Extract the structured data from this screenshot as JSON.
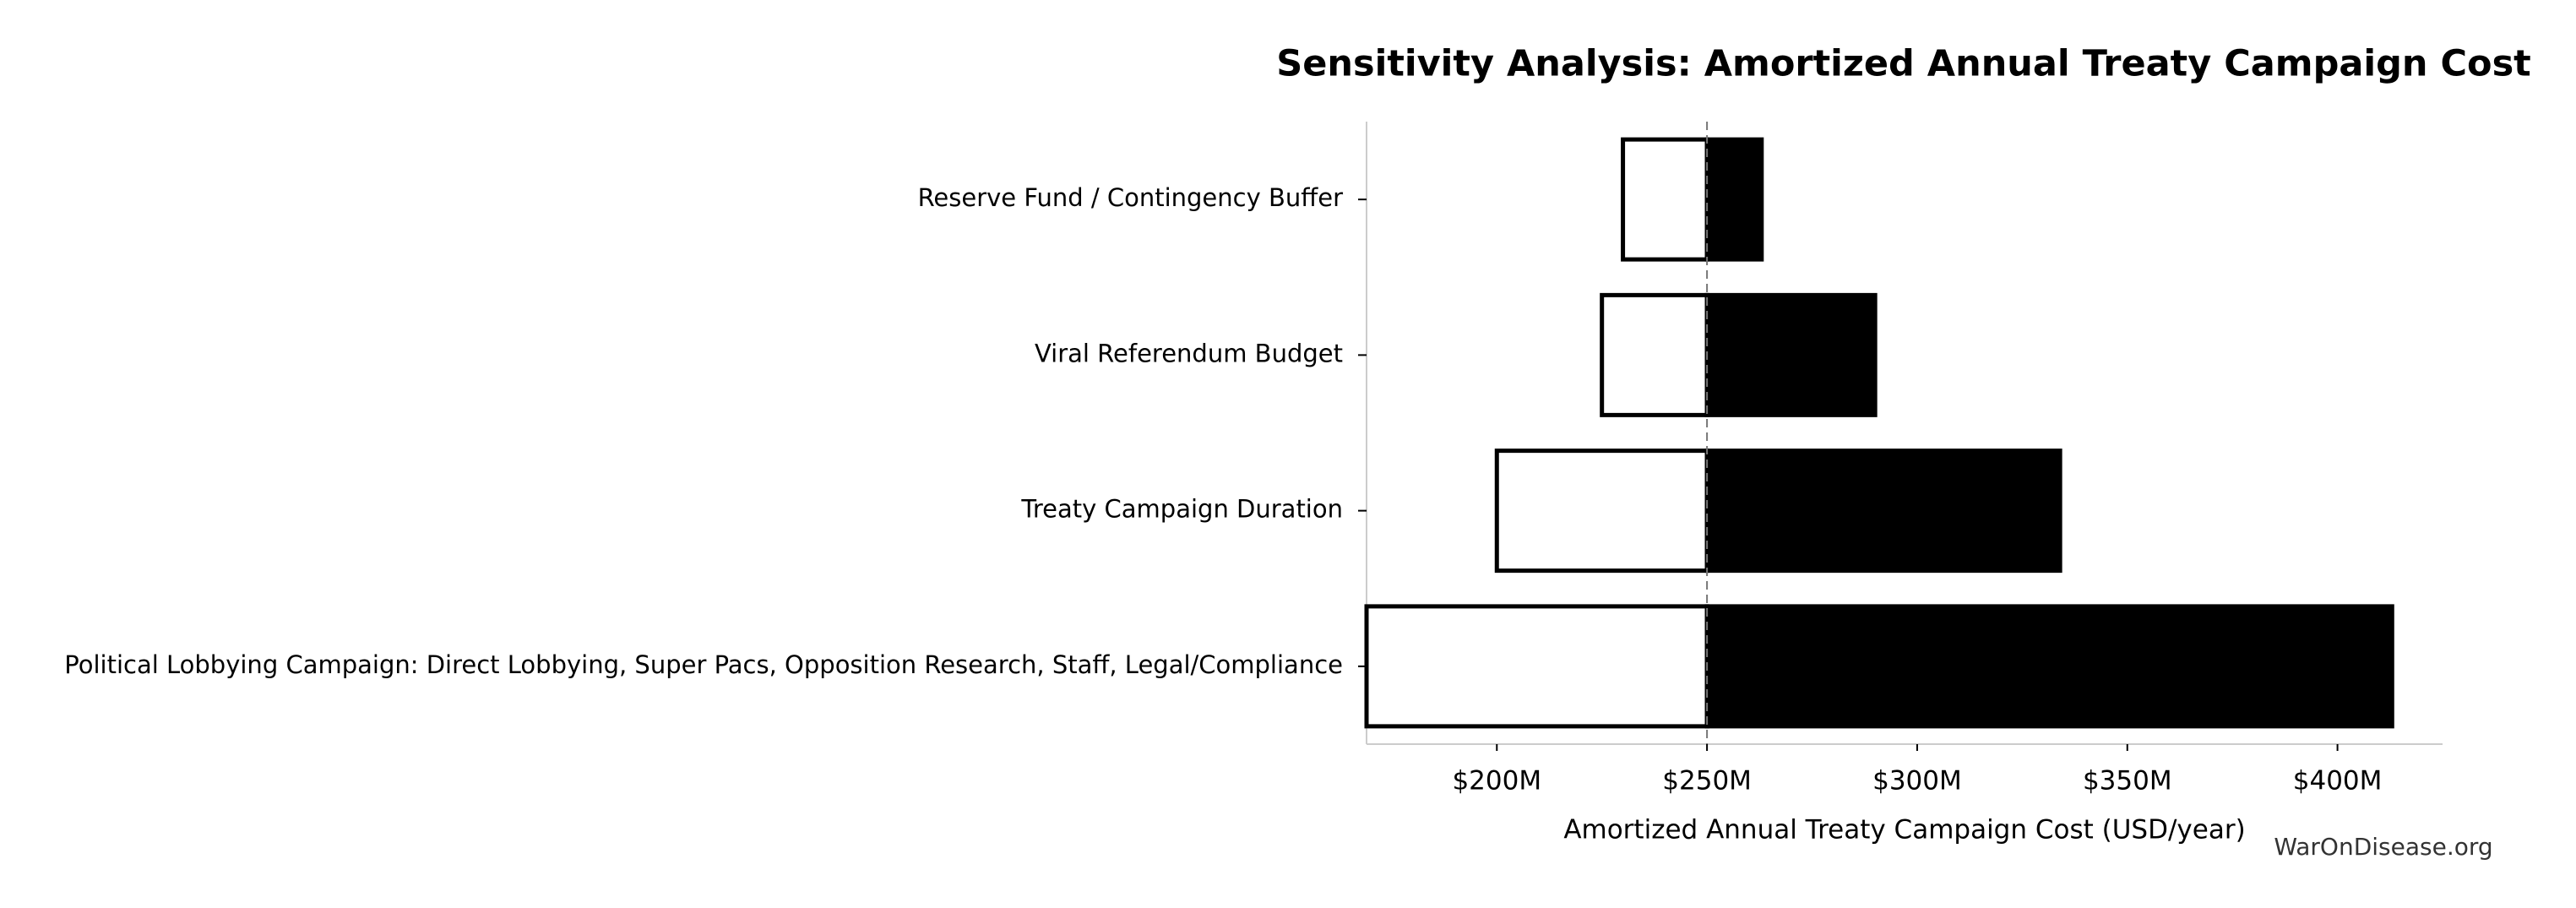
{
  "chart_data": {
    "type": "tornado",
    "title": "Sensitivity Analysis: Amortized Annual Treaty Campaign Cost",
    "xlabel": "Amortized Annual Treaty Campaign Cost (USD/year)",
    "watermark": "WarOnDisease.org",
    "categories": [
      "Reserve Fund / Contingency Buffer",
      "Viral Referendum Budget",
      "Treaty Campaign Duration",
      "Political Lobbying Campaign: Direct Lobbying, Super Pacs, Opposition Research, Staff, Legal/Compliance"
    ],
    "base": 250,
    "series": [
      {
        "color": "#ffffff",
        "values": [
          230,
          225,
          200,
          169
        ]
      },
      {
        "color": "#000000",
        "values": [
          263,
          290,
          334,
          413
        ]
      }
    ],
    "xlim": [
      169,
      425
    ],
    "xticks": [
      {
        "value": 200,
        "label": "$200M"
      },
      {
        "value": 250,
        "label": "$250M"
      },
      {
        "value": 300,
        "label": "$300M"
      },
      {
        "value": 350,
        "label": "$350M"
      },
      {
        "value": 400,
        "label": "$400M"
      }
    ]
  }
}
